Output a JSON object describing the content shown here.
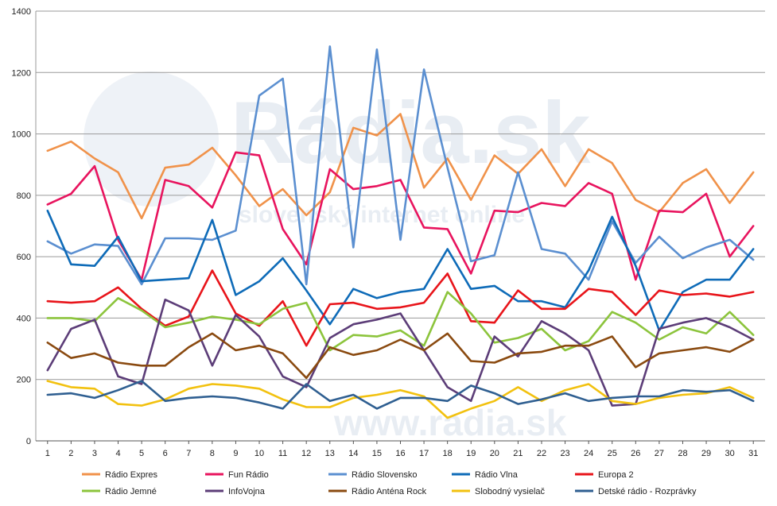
{
  "chart_data": {
    "type": "line",
    "title": "",
    "xlabel": "",
    "ylabel": "",
    "x": [
      1,
      2,
      3,
      4,
      5,
      6,
      7,
      8,
      9,
      10,
      11,
      12,
      13,
      14,
      15,
      16,
      17,
      18,
      19,
      20,
      21,
      22,
      23,
      24,
      25,
      26,
      27,
      28,
      29,
      30,
      31
    ],
    "ylim": [
      0,
      1400
    ],
    "yticks": [
      0,
      200,
      400,
      600,
      800,
      1000,
      1200,
      1400
    ],
    "grid": "horizontal",
    "legend_position": "bottom",
    "watermark": {
      "brand": "Rádia.sk",
      "tagline": "slovenský internet online",
      "footer": "www.radia.sk"
    },
    "series": [
      {
        "name": "Rádio Expres",
        "color": "#f0924a",
        "values": [
          945,
          975,
          920,
          875,
          725,
          890,
          900,
          955,
          865,
          765,
          820,
          735,
          810,
          1020,
          995,
          1065,
          825,
          920,
          785,
          930,
          870,
          950,
          830,
          950,
          905,
          785,
          745,
          840,
          885,
          775,
          875
        ]
      },
      {
        "name": "Fun Rádio",
        "color": "#e8145e",
        "values": [
          770,
          805,
          895,
          655,
          525,
          850,
          830,
          760,
          940,
          930,
          690,
          575,
          885,
          820,
          830,
          850,
          695,
          690,
          545,
          750,
          745,
          775,
          765,
          840,
          805,
          525,
          750,
          745,
          805,
          600,
          700
        ]
      },
      {
        "name": "Rádio Slovensko",
        "color": "#5b8fd0",
        "values": [
          650,
          610,
          640,
          635,
          510,
          660,
          660,
          655,
          685,
          1125,
          1180,
          510,
          1285,
          630,
          1275,
          655,
          1210,
          890,
          585,
          605,
          875,
          625,
          610,
          525,
          715,
          580,
          665,
          595,
          630,
          655,
          590
        ]
      },
      {
        "name": "Rádio Vlna",
        "color": "#0e6bb8",
        "values": [
          750,
          575,
          570,
          665,
          520,
          525,
          530,
          720,
          475,
          520,
          595,
          490,
          380,
          495,
          465,
          485,
          495,
          625,
          495,
          505,
          455,
          455,
          435,
          555,
          730,
          570,
          360,
          485,
          525,
          525,
          625
        ]
      },
      {
        "name": "Europa 2",
        "color": "#e8141a",
        "values": [
          455,
          450,
          455,
          500,
          430,
          375,
          405,
          555,
          415,
          375,
          455,
          310,
          445,
          450,
          430,
          435,
          450,
          545,
          390,
          385,
          490,
          430,
          430,
          495,
          485,
          410,
          490,
          475,
          480,
          470,
          485
        ]
      },
      {
        "name": "Rádio Jemné",
        "color": "#8cc43c",
        "values": [
          400,
          400,
          390,
          465,
          425,
          370,
          385,
          405,
          395,
          380,
          430,
          450,
          295,
          345,
          340,
          360,
          310,
          485,
          415,
          320,
          335,
          365,
          295,
          325,
          420,
          385,
          330,
          370,
          350,
          420,
          345
        ]
      },
      {
        "name": "InfoVojna",
        "color": "#5c3d78",
        "values": [
          230,
          365,
          395,
          210,
          185,
          460,
          425,
          245,
          410,
          340,
          210,
          175,
          335,
          380,
          395,
          415,
          295,
          175,
          130,
          340,
          275,
          390,
          350,
          295,
          115,
          120,
          365,
          385,
          400,
          370,
          330
        ]
      },
      {
        "name": "Rádio Anténa Rock",
        "color": "#8a4a10",
        "values": [
          320,
          270,
          285,
          255,
          245,
          245,
          305,
          350,
          295,
          310,
          285,
          205,
          305,
          280,
          295,
          330,
          295,
          350,
          260,
          255,
          285,
          290,
          310,
          310,
          340,
          240,
          285,
          295,
          305,
          290,
          330
        ]
      },
      {
        "name": "Slobodný vysielač",
        "color": "#f2c10f",
        "values": [
          195,
          175,
          170,
          120,
          115,
          135,
          170,
          185,
          180,
          170,
          135,
          110,
          110,
          140,
          150,
          165,
          145,
          75,
          105,
          130,
          175,
          130,
          165,
          185,
          130,
          120,
          140,
          150,
          155,
          175,
          140
        ]
      },
      {
        "name": "Detské rádio - Rozprávky",
        "color": "#2f5f91",
        "values": [
          150,
          155,
          140,
          165,
          195,
          130,
          140,
          145,
          140,
          125,
          105,
          185,
          130,
          150,
          105,
          140,
          140,
          130,
          180,
          155,
          120,
          135,
          155,
          130,
          140,
          145,
          145,
          165,
          160,
          165,
          130
        ]
      }
    ]
  }
}
